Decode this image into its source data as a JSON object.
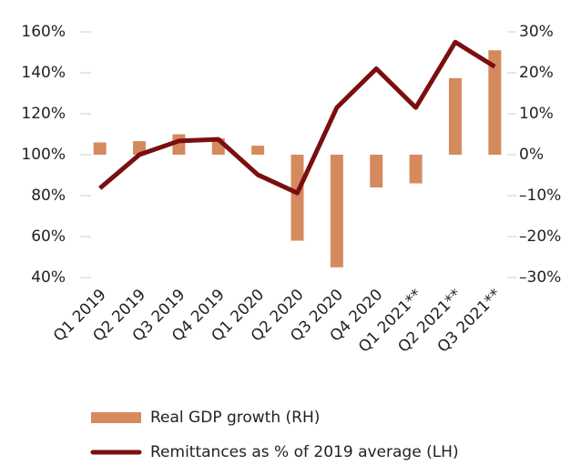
{
  "chart_data": {
    "type": "bar-line",
    "categories": [
      "Q1 2019",
      "Q2 2019",
      "Q3 2019",
      "Q4 2019",
      "Q1 2020",
      "Q2 2020",
      "Q3 2020",
      "Q4 2020",
      "Q1 2021**",
      "Q2 2021**",
      "Q3 2021**"
    ],
    "series": [
      {
        "name": "Real GDP growth (RH)",
        "type": "bar",
        "axis": "y2",
        "color": "#d58a5e",
        "values": [
          3,
          3.3,
          5,
          4,
          2.2,
          -21,
          -27.5,
          -8,
          -7,
          18.7,
          25.5
        ]
      },
      {
        "name": "Remittances as % of 2019 average (LH)",
        "type": "line",
        "color": "#7a0f0f",
        "values": [
          83.6,
          100,
          106.7,
          107.5,
          90.2,
          81.3,
          123,
          142,
          123,
          155,
          143
        ]
      }
    ],
    "ylim": [
      40,
      160
    ],
    "yticks": [
      {
        "value": 40,
        "label": "40%"
      },
      {
        "value": 60,
        "label": "60%"
      },
      {
        "value": 80,
        "label": "80%"
      },
      {
        "value": 100,
        "label": "100%"
      },
      {
        "value": 120,
        "label": "120%"
      },
      {
        "value": 140,
        "label": "140%"
      },
      {
        "value": 160,
        "label": "160%"
      }
    ],
    "y2lim": [
      -30,
      30
    ],
    "y2ticks": [
      {
        "value": -30,
        "label": "–30%"
      },
      {
        "value": -20,
        "label": "–20%"
      },
      {
        "value": -10,
        "label": "–10%"
      },
      {
        "value": 0,
        "label": "0%"
      },
      {
        "value": 10,
        "label": "10%"
      },
      {
        "value": 20,
        "label": "20%"
      },
      {
        "value": 30,
        "label": "30%"
      }
    ],
    "legend": "bottom"
  }
}
